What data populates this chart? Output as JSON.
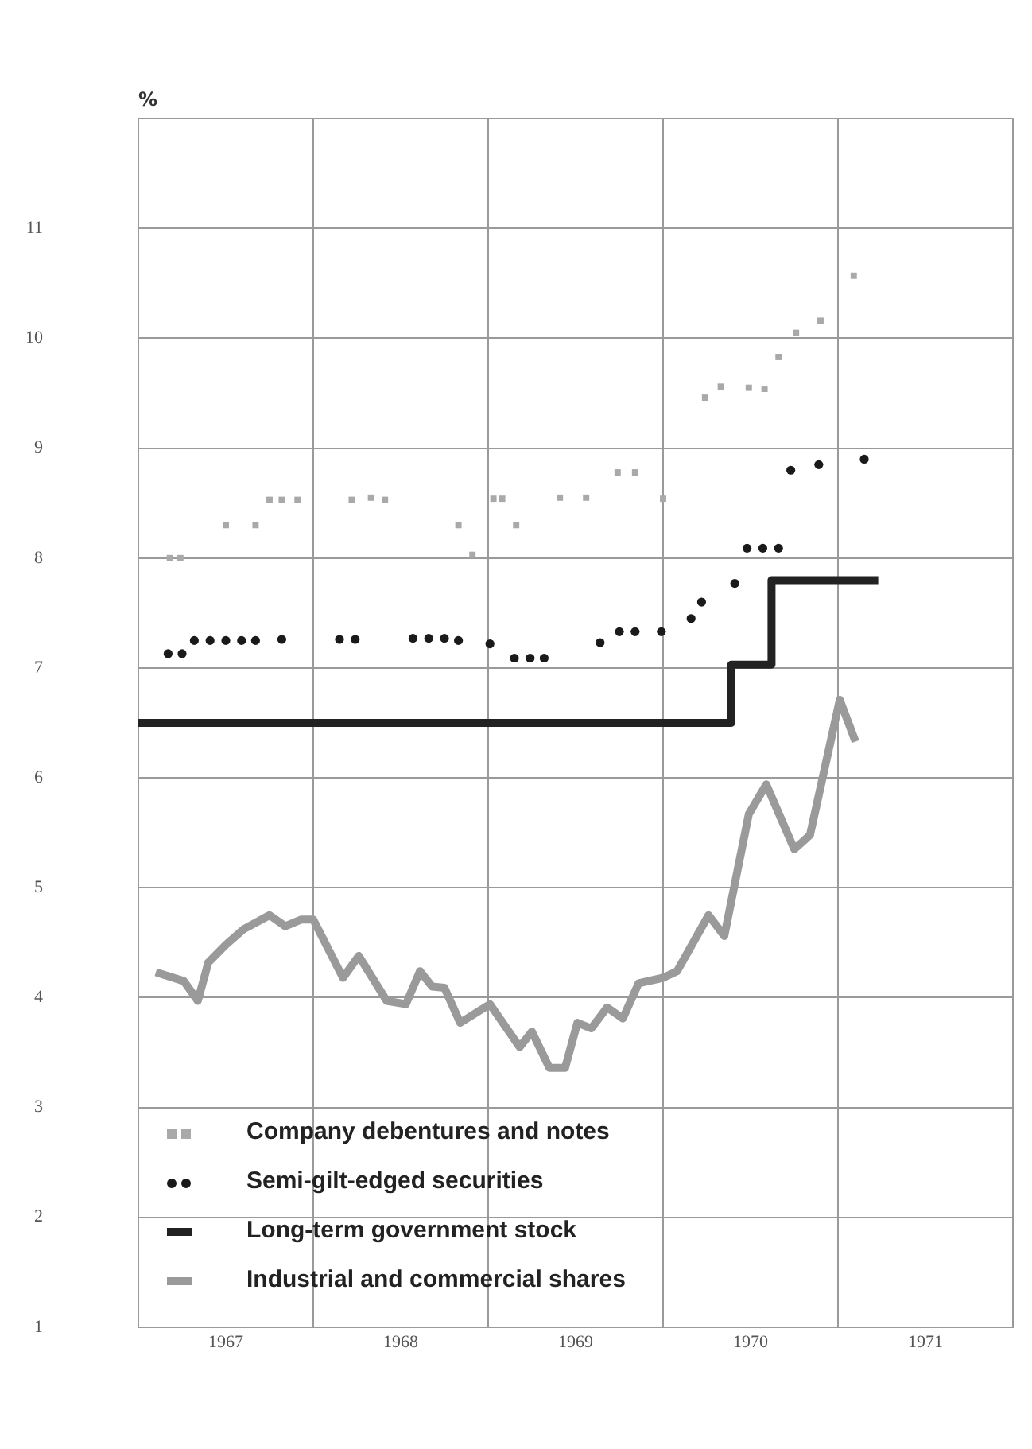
{
  "chart_data": {
    "type": "scatter",
    "ylabel": "%",
    "xlim": [
      1967,
      1972
    ],
    "ylim": [
      1,
      12
    ],
    "grid": true,
    "legend": "bottom left",
    "xticks": [
      {
        "value": 1967,
        "label": null
      },
      {
        "value": 1967.5,
        "label": "1967"
      },
      {
        "value": 1968,
        "label": null
      },
      {
        "value": 1968.5,
        "label": "1968"
      },
      {
        "value": 1969,
        "label": null
      },
      {
        "value": 1969.5,
        "label": "1969"
      },
      {
        "value": 1970,
        "label": null
      },
      {
        "value": 1970.5,
        "label": "1970"
      },
      {
        "value": 1971,
        "label": null
      },
      {
        "value": 1971.5,
        "label": "1971"
      },
      {
        "value": 1972,
        "label": null
      }
    ],
    "yticks": [
      1,
      2,
      3,
      4,
      5,
      6,
      7,
      8,
      9,
      10,
      11,
      {
        "value": 12,
        "label": null
      }
    ],
    "series": [
      {
        "name": "Company debentures and notes",
        "type": "scatter",
        "marker": "square",
        "color": "#a9a9a9",
        "x": [
          1967.18,
          1967.24,
          1967.5,
          1967.67,
          1967.75,
          1967.82,
          1967.91,
          1968.22,
          1968.33,
          1968.41,
          1968.83,
          1968.91,
          1969.03,
          1969.08,
          1969.16,
          1969.41,
          1969.56,
          1969.74,
          1969.84,
          1970.0,
          1970.24,
          1970.33,
          1970.49,
          1970.58,
          1970.66,
          1970.76,
          1970.9,
          1971.09
        ],
        "values": [
          8.0,
          8.0,
          8.3,
          8.3,
          8.53,
          8.53,
          8.53,
          8.53,
          8.55,
          8.53,
          8.3,
          8.03,
          8.54,
          8.54,
          8.3,
          8.55,
          8.55,
          8.78,
          8.78,
          8.54,
          9.46,
          9.56,
          9.55,
          9.54,
          9.83,
          10.05,
          10.16,
          10.57
        ]
      },
      {
        "name": "Semi-gilt-edged securities",
        "type": "scatter",
        "marker": "circle",
        "color": "#1a1a1a",
        "x": [
          1967.17,
          1967.25,
          1967.32,
          1967.41,
          1967.5,
          1967.59,
          1967.67,
          1967.82,
          1968.15,
          1968.24,
          1968.57,
          1968.66,
          1968.75,
          1968.83,
          1969.01,
          1969.15,
          1969.24,
          1969.32,
          1969.64,
          1969.75,
          1969.84,
          1969.99,
          1970.16,
          1970.22,
          1970.41,
          1970.48,
          1970.57,
          1970.66,
          1970.73,
          1970.89,
          1971.15
        ],
        "values": [
          7.13,
          7.13,
          7.25,
          7.25,
          7.25,
          7.25,
          7.25,
          7.26,
          7.26,
          7.26,
          7.27,
          7.27,
          7.27,
          7.25,
          7.22,
          7.09,
          7.09,
          7.09,
          7.23,
          7.33,
          7.33,
          7.33,
          7.45,
          7.6,
          7.77,
          8.09,
          8.09,
          8.09,
          8.8,
          8.85,
          8.9
        ]
      },
      {
        "name": "Long-term government stock",
        "type": "step",
        "color": "#222222",
        "x": [
          1967,
          1970.39,
          1970.62,
          1971.23
        ],
        "values": [
          6.5,
          7.03,
          7.8,
          7.8
        ]
      },
      {
        "name": "Industrial and commercial shares",
        "type": "line",
        "color": "#9a9a9a",
        "x": [
          1967.1,
          1967.26,
          1967.34,
          1967.4,
          1967.5,
          1967.6,
          1967.75,
          1967.84,
          1967.93,
          1968.0,
          1968.17,
          1968.26,
          1968.42,
          1968.53,
          1968.61,
          1968.68,
          1968.75,
          1968.84,
          1969.01,
          1969.18,
          1969.25,
          1969.35,
          1969.44,
          1969.51,
          1969.59,
          1969.68,
          1969.77,
          1969.86,
          1970.0,
          1970.08,
          1970.26,
          1970.35,
          1970.49,
          1970.59,
          1970.75,
          1970.84,
          1971.01,
          1971.1
        ],
        "values": [
          4.23,
          4.15,
          3.97,
          4.32,
          4.48,
          4.62,
          4.75,
          4.65,
          4.71,
          4.71,
          4.18,
          4.38,
          3.97,
          3.94,
          4.24,
          4.1,
          4.09,
          3.77,
          3.94,
          3.55,
          3.69,
          3.36,
          3.36,
          3.77,
          3.72,
          3.91,
          3.81,
          4.13,
          4.18,
          4.24,
          4.75,
          4.56,
          5.67,
          5.94,
          5.35,
          5.48,
          6.71,
          6.33
        ]
      }
    ]
  }
}
